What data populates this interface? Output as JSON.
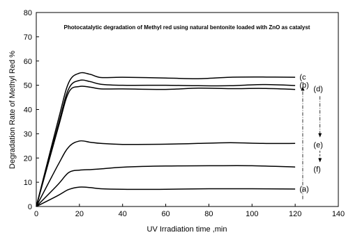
{
  "chart_data": {
    "type": "line",
    "title": "Photocatalytic degradation of Methyl red using natural bentonite loaded with ZnO as catalyst",
    "xlabel": "UV Irradiation time ,min",
    "ylabel": "Degradation Rate of Methyl Red %",
    "xlim": [
      0,
      140
    ],
    "ylim": [
      0,
      80
    ],
    "x_ticks": [
      "0",
      "20",
      "40",
      "60",
      "80",
      "100",
      "120",
      "140"
    ],
    "y_ticks": [
      "0",
      "10",
      "20",
      "30",
      "40",
      "50",
      "60",
      "70",
      "80"
    ],
    "grid": false,
    "legend": "none",
    "series": [
      {
        "name": "(c",
        "points": [
          [
            0,
            0
          ],
          [
            10,
            35
          ],
          [
            15,
            51
          ],
          [
            20,
            55
          ],
          [
            25,
            54.5
          ],
          [
            30,
            53.2
          ],
          [
            40,
            53.3
          ],
          [
            60,
            53
          ],
          [
            75,
            52.7
          ],
          [
            90,
            53.3
          ],
          [
            105,
            53.4
          ],
          [
            120,
            53.3
          ]
        ]
      },
      {
        "name": "(b)",
        "points": [
          [
            0,
            0
          ],
          [
            10,
            33
          ],
          [
            15,
            48.5
          ],
          [
            20,
            52
          ],
          [
            25,
            51.5
          ],
          [
            30,
            50.4
          ],
          [
            40,
            50
          ],
          [
            60,
            50
          ],
          [
            75,
            49.8
          ],
          [
            90,
            49.8
          ],
          [
            105,
            50.3
          ],
          [
            120,
            49.9
          ]
        ]
      },
      {
        "name": "(d)",
        "points": [
          [
            0,
            0
          ],
          [
            10,
            32
          ],
          [
            15,
            47
          ],
          [
            20,
            49.5
          ],
          [
            25,
            49.2
          ],
          [
            30,
            48.5
          ],
          [
            40,
            48.5
          ],
          [
            60,
            48.3
          ],
          [
            75,
            48.8
          ],
          [
            90,
            48.6
          ],
          [
            105,
            48.7
          ],
          [
            120,
            48.3
          ]
        ]
      },
      {
        "name": "(e)",
        "points": [
          [
            0,
            0
          ],
          [
            10,
            17
          ],
          [
            15,
            24.5
          ],
          [
            20,
            27
          ],
          [
            25,
            26.5
          ],
          [
            30,
            26
          ],
          [
            40,
            25.6
          ],
          [
            60,
            25.7
          ],
          [
            75,
            26
          ],
          [
            90,
            26.3
          ],
          [
            105,
            26
          ],
          [
            120,
            26
          ]
        ]
      },
      {
        "name": "(f)",
        "points": [
          [
            0,
            0
          ],
          [
            10,
            9
          ],
          [
            15,
            14
          ],
          [
            20,
            15
          ],
          [
            25,
            15.2
          ],
          [
            30,
            15.5
          ],
          [
            40,
            16.2
          ],
          [
            60,
            16.7
          ],
          [
            80,
            16.8
          ],
          [
            100,
            16.8
          ],
          [
            120,
            16.3
          ]
        ]
      },
      {
        "name": "(a)",
        "points": [
          [
            0,
            0
          ],
          [
            10,
            4.5
          ],
          [
            15,
            7
          ],
          [
            20,
            8
          ],
          [
            25,
            7.8
          ],
          [
            30,
            7.3
          ],
          [
            40,
            7.1
          ],
          [
            60,
            7.1
          ],
          [
            80,
            7.3
          ],
          [
            100,
            7.3
          ],
          [
            120,
            7.2
          ]
        ]
      }
    ],
    "annotations": [
      {
        "text": "(c",
        "x": 122,
        "y": 53.5
      },
      {
        "text": "(b)",
        "x": 122,
        "y": 50.2
      },
      {
        "text": "(d)",
        "x": 128.5,
        "y": 48.6
      },
      {
        "text": "(e)",
        "x": 128.5,
        "y": 25.5
      },
      {
        "text": "(f)",
        "x": 128.5,
        "y": 15.5
      },
      {
        "text": "(a)",
        "x": 122,
        "y": 7.3
      }
    ]
  }
}
